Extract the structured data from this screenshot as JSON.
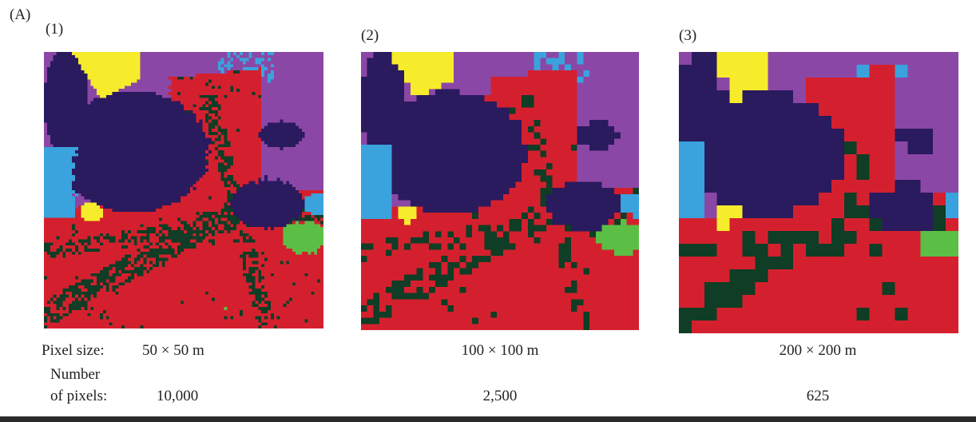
{
  "label": "(A)",
  "panels": [
    {
      "label": "(1)",
      "pixel_size": "50 × 50 m",
      "pixels": "10,000"
    },
    {
      "label": "(2)",
      "pixel_size": "100 × 100 m",
      "pixels": "2,500"
    },
    {
      "label": "(3)",
      "pixel_size": "200 × 200 m",
      "pixels": "625"
    }
  ],
  "pixel_size_label": "Pixel size:",
  "number_label": [
    "Number",
    "of pixels:"
  ]
}
